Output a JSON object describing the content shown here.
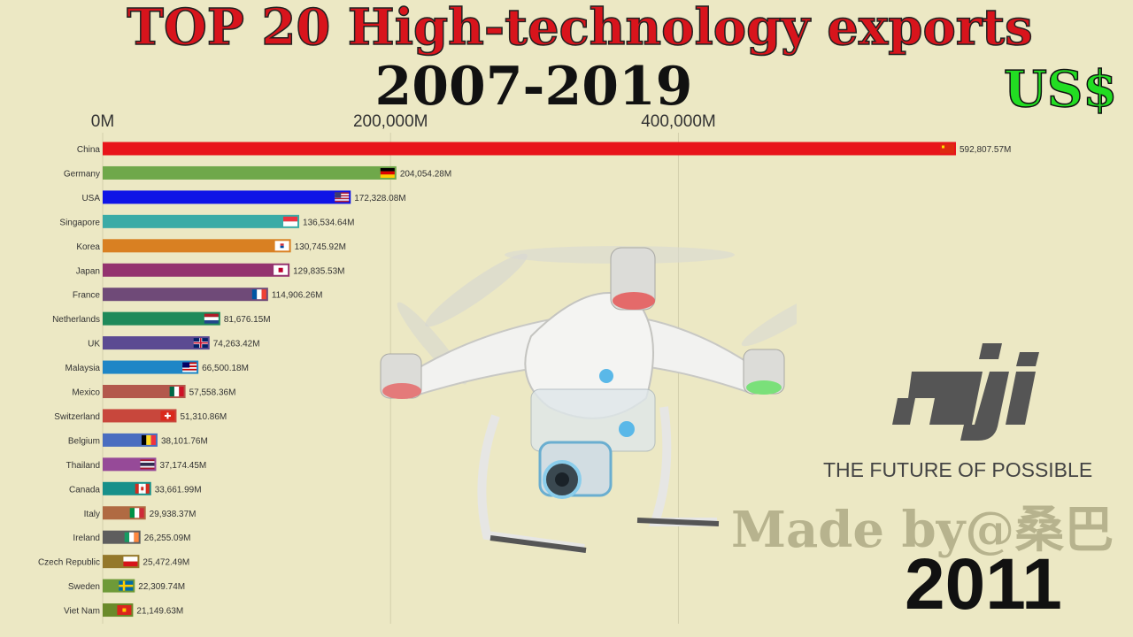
{
  "header": {
    "title": "TOP 20 High-technology exports",
    "subtitle": "2007-2019",
    "currency": "US$"
  },
  "footer": {
    "watermark": "Made by@桑巴",
    "year": "2011"
  },
  "brand": {
    "logo_text": "dji",
    "tagline": "THE FUTURE OF POSSIBLE"
  },
  "colors": {
    "background": "#ece8c4",
    "title": "#d8141c",
    "currency": "#22dd22"
  },
  "chart_data": {
    "type": "bar",
    "orientation": "horizontal",
    "x_ticks": [
      0,
      200000,
      400000
    ],
    "x_tick_labels": [
      "0M",
      "200,000M",
      "400,000M"
    ],
    "xlim": [
      0,
      592807.57
    ],
    "grid": true,
    "categories": [
      "China",
      "Germany",
      "USA",
      "Singapore",
      "Korea",
      "Japan",
      "France",
      "Netherlands",
      "UK",
      "Malaysia",
      "Mexico",
      "Switzerland",
      "Belgium",
      "Thailand",
      "Canada",
      "Italy",
      "Ireland",
      "Czech Republic",
      "Sweden",
      "Viet Nam"
    ],
    "values": [
      592807.57,
      204054.28,
      172328.08,
      136534.64,
      130745.92,
      129835.53,
      114906.26,
      81676.15,
      74263.42,
      66500.18,
      57558.36,
      51310.86,
      38101.76,
      37174.45,
      33661.99,
      29938.37,
      26255.09,
      25472.49,
      22309.74,
      21149.63
    ],
    "value_labels": [
      "592,807.57M",
      "204,054.28M",
      "172,328.08M",
      "136,534.64M",
      "130,745.92M",
      "129,835.53M",
      "114,906.26M",
      "81,676.15M",
      "74,263.42M",
      "66,500.18M",
      "57,558.36M",
      "51,310.86M",
      "38,101.76M",
      "37,174.45M",
      "33,661.99M",
      "29,938.37M",
      "26,255.09M",
      "25,472.49M",
      "22,309.74M",
      "21,149.63M"
    ],
    "bar_colors": [
      "#e8141a",
      "#6fa84a",
      "#0f14e6",
      "#3aaba6",
      "#d98022",
      "#94336f",
      "#6f4a78",
      "#1f8a5a",
      "#5b4a92",
      "#1e86c6",
      "#b3584c",
      "#c8473c",
      "#4a6ec0",
      "#964a98",
      "#17908a",
      "#b06a42",
      "#5e5e5e",
      "#94782a",
      "#6e9a38",
      "#6a8a2a"
    ],
    "flags": [
      "china",
      "germany",
      "usa",
      "singapore",
      "korea",
      "japan",
      "france",
      "netherlands",
      "uk",
      "malaysia",
      "mexico",
      "switzerland",
      "belgium",
      "thailand",
      "canada",
      "italy",
      "ireland",
      "czech",
      "sweden",
      "vietnam"
    ]
  }
}
